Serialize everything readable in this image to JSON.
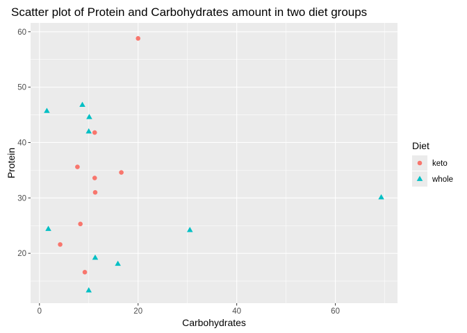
{
  "chart_data": {
    "type": "scatter",
    "title": "Scatter plot of Protein and Carbohydrates amount in two diet groups",
    "xlabel": "Carbohydrates",
    "ylabel": "Protein",
    "xlim": [
      -1.8,
      72.6
    ],
    "ylim": [
      11.0,
      61.6
    ],
    "x_ticks": [
      0,
      20,
      40,
      60
    ],
    "y_ticks": [
      20,
      30,
      40,
      50,
      60
    ],
    "grid": true,
    "panel_color": "#ebebeb",
    "legend": {
      "title": "Diet",
      "position": "right"
    },
    "series": [
      {
        "name": "keto",
        "marker": "circle",
        "color": "#f8766d",
        "points": [
          {
            "x": 20.0,
            "y": 58.8
          },
          {
            "x": 11.2,
            "y": 41.8
          },
          {
            "x": 7.7,
            "y": 35.6
          },
          {
            "x": 16.6,
            "y": 34.6
          },
          {
            "x": 11.2,
            "y": 33.6
          },
          {
            "x": 11.3,
            "y": 31.0
          },
          {
            "x": 8.3,
            "y": 25.3
          },
          {
            "x": 4.2,
            "y": 21.6
          },
          {
            "x": 9.2,
            "y": 16.6
          }
        ]
      },
      {
        "name": "whole",
        "marker": "triangle",
        "color": "#00bfc4",
        "points": [
          {
            "x": 8.7,
            "y": 46.8
          },
          {
            "x": 1.5,
            "y": 45.7
          },
          {
            "x": 10.1,
            "y": 44.6
          },
          {
            "x": 10.0,
            "y": 42.0
          },
          {
            "x": 69.3,
            "y": 30.1
          },
          {
            "x": 1.8,
            "y": 24.4
          },
          {
            "x": 30.5,
            "y": 24.2
          },
          {
            "x": 11.3,
            "y": 19.2
          },
          {
            "x": 15.9,
            "y": 18.1
          },
          {
            "x": 10.0,
            "y": 13.3
          }
        ]
      }
    ]
  }
}
